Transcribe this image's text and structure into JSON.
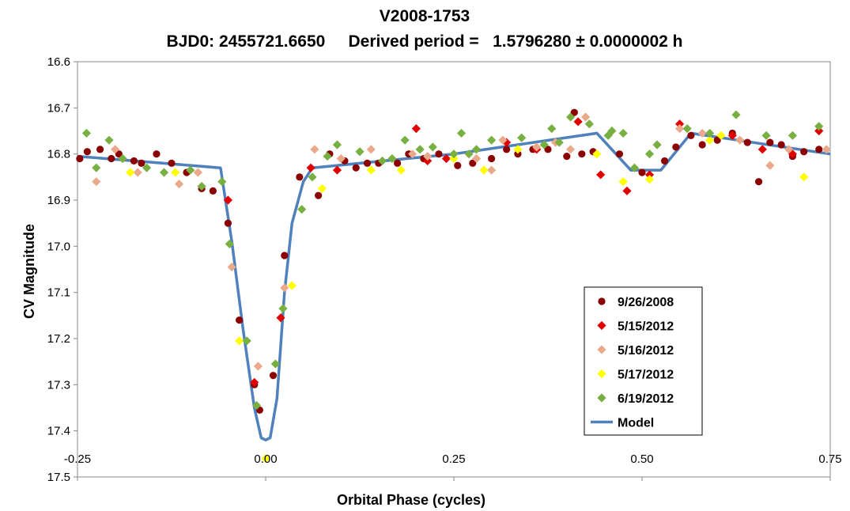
{
  "chart_data": {
    "type": "scatter",
    "title": "V2008-1753",
    "subtitle": "BJD0: 2455721.6650     Derived period =   1.5796280 ± 0.0000002 h",
    "xlabel": "Orbital Phase (cycles)",
    "ylabel": "CV Magnitude",
    "xlim": [
      -0.25,
      0.75
    ],
    "ylim": [
      16.6,
      17.5
    ],
    "y_inverted": true,
    "x_ticks": [
      "-0.25",
      "0.00",
      "0.25",
      "0.50",
      "0.75"
    ],
    "x_tick_values": [
      -0.25,
      0.0,
      0.25,
      0.5,
      0.75
    ],
    "y_ticks": [
      "16.6",
      "16.7",
      "16.8",
      "16.9",
      "17.0",
      "17.1",
      "17.2",
      "17.3",
      "17.4",
      "17.5"
    ],
    "y_tick_values": [
      16.6,
      16.7,
      16.8,
      16.9,
      17.0,
      17.1,
      17.2,
      17.3,
      17.4,
      17.5
    ],
    "grid": false,
    "legend_position": "lower-right",
    "series": [
      {
        "name": "9/26/2008",
        "marker": "circle",
        "color": "#8B0000",
        "points": [
          [
            -0.247,
            16.81
          ],
          [
            -0.237,
            16.795
          ],
          [
            -0.22,
            16.79
          ],
          [
            -0.205,
            16.81
          ],
          [
            -0.195,
            16.8
          ],
          [
            -0.175,
            16.815
          ],
          [
            -0.165,
            16.82
          ],
          [
            -0.145,
            16.8
          ],
          [
            -0.125,
            16.82
          ],
          [
            -0.105,
            16.84
          ],
          [
            -0.085,
            16.875
          ],
          [
            -0.07,
            16.88
          ],
          [
            -0.05,
            16.95
          ],
          [
            -0.035,
            17.16
          ],
          [
            -0.015,
            17.3
          ],
          [
            -0.008,
            17.355
          ],
          [
            0.01,
            17.28
          ],
          [
            0.025,
            17.02
          ],
          [
            0.045,
            16.85
          ],
          [
            0.07,
            16.89
          ],
          [
            0.085,
            16.8
          ],
          [
            0.105,
            16.815
          ],
          [
            0.12,
            16.83
          ],
          [
            0.135,
            16.82
          ],
          [
            0.15,
            16.82
          ],
          [
            0.175,
            16.82
          ],
          [
            0.19,
            16.8
          ],
          [
            0.21,
            16.81
          ],
          [
            0.23,
            16.8
          ],
          [
            0.255,
            16.825
          ],
          [
            0.275,
            16.82
          ],
          [
            0.3,
            16.81
          ],
          [
            0.32,
            16.79
          ],
          [
            0.335,
            16.8
          ],
          [
            0.355,
            16.79
          ],
          [
            0.375,
            16.79
          ],
          [
            0.4,
            16.805
          ],
          [
            0.41,
            16.71
          ],
          [
            0.42,
            16.8
          ],
          [
            0.435,
            16.795
          ],
          [
            0.47,
            16.8
          ],
          [
            0.5,
            16.84
          ],
          [
            0.53,
            16.815
          ],
          [
            0.545,
            16.785
          ],
          [
            0.565,
            16.76
          ],
          [
            0.58,
            16.78
          ],
          [
            0.6,
            16.77
          ],
          [
            0.62,
            16.755
          ],
          [
            0.64,
            16.775
          ],
          [
            0.655,
            16.86
          ],
          [
            0.67,
            16.775
          ],
          [
            0.685,
            16.78
          ],
          [
            0.7,
            16.805
          ],
          [
            0.715,
            16.795
          ],
          [
            0.735,
            16.79
          ]
        ]
      },
      {
        "name": "5/15/2012",
        "marker": "diamond",
        "color": "#E00000",
        "points": [
          [
            -0.05,
            16.9
          ],
          [
            -0.015,
            17.295
          ],
          [
            0.02,
            17.155
          ],
          [
            0.06,
            16.83
          ],
          [
            0.095,
            16.835
          ],
          [
            0.2,
            16.745
          ],
          [
            0.215,
            16.815
          ],
          [
            0.24,
            16.81
          ],
          [
            0.32,
            16.775
          ],
          [
            0.36,
            16.79
          ],
          [
            0.415,
            16.73
          ],
          [
            0.445,
            16.845
          ],
          [
            0.48,
            16.88
          ],
          [
            0.51,
            16.845
          ],
          [
            0.55,
            16.735
          ],
          [
            0.62,
            16.76
          ],
          [
            0.66,
            16.79
          ],
          [
            0.7,
            16.8
          ],
          [
            0.735,
            16.75
          ]
        ]
      },
      {
        "name": "5/16/2012",
        "marker": "diamond",
        "color": "#E9A98A",
        "points": [
          [
            -0.225,
            16.86
          ],
          [
            -0.2,
            16.79
          ],
          [
            -0.17,
            16.84
          ],
          [
            -0.115,
            16.865
          ],
          [
            -0.09,
            16.84
          ],
          [
            -0.045,
            17.045
          ],
          [
            -0.01,
            17.26
          ],
          [
            0.025,
            17.09
          ],
          [
            0.065,
            16.79
          ],
          [
            0.1,
            16.81
          ],
          [
            0.14,
            16.79
          ],
          [
            0.195,
            16.8
          ],
          [
            0.215,
            16.805
          ],
          [
            0.28,
            16.81
          ],
          [
            0.3,
            16.835
          ],
          [
            0.315,
            16.77
          ],
          [
            0.36,
            16.785
          ],
          [
            0.385,
            16.775
          ],
          [
            0.405,
            16.79
          ],
          [
            0.425,
            16.72
          ],
          [
            0.55,
            16.745
          ],
          [
            0.58,
            16.755
          ],
          [
            0.63,
            16.77
          ],
          [
            0.67,
            16.825
          ],
          [
            0.695,
            16.79
          ],
          [
            0.745,
            16.79
          ]
        ]
      },
      {
        "name": "5/17/2012",
        "marker": "diamond",
        "color": "#FFFF00",
        "points": [
          [
            -0.18,
            16.84
          ],
          [
            -0.12,
            16.84
          ],
          [
            -0.035,
            17.205
          ],
          [
            0.0,
            17.46
          ],
          [
            0.035,
            17.085
          ],
          [
            0.075,
            16.875
          ],
          [
            0.14,
            16.835
          ],
          [
            0.18,
            16.835
          ],
          [
            0.25,
            16.81
          ],
          [
            0.29,
            16.835
          ],
          [
            0.335,
            16.79
          ],
          [
            0.44,
            16.8
          ],
          [
            0.475,
            16.86
          ],
          [
            0.51,
            16.855
          ],
          [
            0.59,
            16.77
          ],
          [
            0.605,
            16.76
          ],
          [
            0.715,
            16.85
          ]
        ]
      },
      {
        "name": "6/19/2012",
        "marker": "diamond",
        "color": "#77B041",
        "points": [
          [
            -0.238,
            16.755
          ],
          [
            -0.225,
            16.83
          ],
          [
            -0.208,
            16.77
          ],
          [
            -0.19,
            16.81
          ],
          [
            -0.158,
            16.83
          ],
          [
            -0.135,
            16.84
          ],
          [
            -0.1,
            16.835
          ],
          [
            -0.085,
            16.87
          ],
          [
            -0.058,
            16.86
          ],
          [
            -0.048,
            16.995
          ],
          [
            -0.025,
            17.205
          ],
          [
            -0.012,
            17.345
          ],
          [
            0.013,
            17.255
          ],
          [
            0.023,
            17.135
          ],
          [
            0.048,
            16.92
          ],
          [
            0.062,
            16.85
          ],
          [
            0.082,
            16.805
          ],
          [
            0.095,
            16.78
          ],
          [
            0.125,
            16.795
          ],
          [
            0.155,
            16.815
          ],
          [
            0.168,
            16.81
          ],
          [
            0.185,
            16.77
          ],
          [
            0.205,
            16.79
          ],
          [
            0.222,
            16.785
          ],
          [
            0.25,
            16.8
          ],
          [
            0.26,
            16.755
          ],
          [
            0.27,
            16.8
          ],
          [
            0.28,
            16.79
          ],
          [
            0.3,
            16.77
          ],
          [
            0.34,
            16.765
          ],
          [
            0.37,
            16.78
          ],
          [
            0.38,
            16.745
          ],
          [
            0.39,
            16.775
          ],
          [
            0.405,
            16.72
          ],
          [
            0.43,
            16.735
          ],
          [
            0.455,
            16.76
          ],
          [
            0.46,
            16.75
          ],
          [
            0.475,
            16.755
          ],
          [
            0.49,
            16.83
          ],
          [
            0.51,
            16.8
          ],
          [
            0.52,
            16.78
          ],
          [
            0.56,
            16.745
          ],
          [
            0.59,
            16.755
          ],
          [
            0.625,
            16.715
          ],
          [
            0.665,
            16.76
          ],
          [
            0.7,
            16.76
          ],
          [
            0.735,
            16.74
          ]
        ]
      }
    ],
    "model": {
      "name": "Model",
      "color": "#4F81BD",
      "points": [
        [
          -0.25,
          16.805
        ],
        [
          -0.06,
          16.83
        ],
        [
          -0.045,
          16.99
        ],
        [
          -0.03,
          17.18
        ],
        [
          -0.015,
          17.35
        ],
        [
          -0.006,
          17.415
        ],
        [
          0.0,
          17.42
        ],
        [
          0.006,
          17.415
        ],
        [
          0.015,
          17.33
        ],
        [
          0.025,
          17.1
        ],
        [
          0.035,
          16.95
        ],
        [
          0.05,
          16.86
        ],
        [
          0.062,
          16.83
        ],
        [
          0.25,
          16.8
        ],
        [
          0.44,
          16.755
        ],
        [
          0.485,
          16.835
        ],
        [
          0.525,
          16.835
        ],
        [
          0.565,
          16.755
        ],
        [
          0.75,
          16.8
        ]
      ]
    }
  }
}
